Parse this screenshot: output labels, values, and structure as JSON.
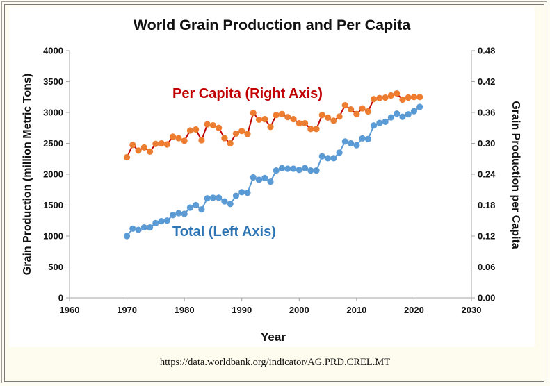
{
  "source_text": "https://data.worldbank.org/indicator/AG.PRD.CREL.MT",
  "chart_data": {
    "type": "line",
    "title": "World Grain Production and Per Capita",
    "xlabel": "Year",
    "ylabel_left": "Grain Production (million Metric Tons)",
    "ylabel_right": "Grain Production per Capita",
    "xlim": [
      1960,
      2030
    ],
    "ylim_left": [
      0,
      4000
    ],
    "ylim_right": [
      0,
      0.48
    ],
    "x_ticks": [
      "1960",
      "1970",
      "1980",
      "1990",
      "2000",
      "2010",
      "2020",
      "2030"
    ],
    "y_left_ticks": [
      "0",
      "500",
      "1000",
      "1500",
      "2000",
      "2500",
      "3000",
      "3500",
      "4000"
    ],
    "y_right_ticks": [
      "0.00",
      "0.06",
      "0.12",
      "0.18",
      "0.24",
      "0.30",
      "0.36",
      "0.42",
      "0.48"
    ],
    "grid": false,
    "series": [
      {
        "name": "Total (Left Axis)",
        "axis": "left",
        "color": "#5b9bd5",
        "label_color": "#2e75b6",
        "x": [
          1970,
          1971,
          1972,
          1973,
          1974,
          1975,
          1976,
          1977,
          1978,
          1979,
          1980,
          1981,
          1982,
          1983,
          1984,
          1985,
          1986,
          1987,
          1988,
          1989,
          1990,
          1991,
          1992,
          1993,
          1994,
          1995,
          1996,
          1997,
          1998,
          1999,
          2000,
          2001,
          2002,
          2003,
          2004,
          2005,
          2006,
          2007,
          2008,
          2009,
          2010,
          2011,
          2012,
          2013,
          2014,
          2015,
          2016,
          2017,
          2018,
          2019,
          2020,
          2021
        ],
        "y": [
          1000,
          1120,
          1100,
          1140,
          1140,
          1210,
          1240,
          1250,
          1340,
          1370,
          1360,
          1460,
          1500,
          1430,
          1610,
          1620,
          1620,
          1560,
          1520,
          1650,
          1710,
          1700,
          1950,
          1910,
          1940,
          1880,
          2060,
          2100,
          2090,
          2090,
          2070,
          2100,
          2060,
          2060,
          2290,
          2260,
          2260,
          2350,
          2530,
          2500,
          2470,
          2580,
          2570,
          2790,
          2830,
          2850,
          2920,
          2980,
          2930,
          2970,
          3020,
          3090
        ]
      },
      {
        "name": "Per Capita (Right Axis)",
        "axis": "right",
        "color": "#ed7d31",
        "label_color": "#c00000",
        "x": [
          1970,
          1971,
          1972,
          1973,
          1974,
          1975,
          1976,
          1977,
          1978,
          1979,
          1980,
          1981,
          1982,
          1983,
          1984,
          1985,
          1986,
          1987,
          1988,
          1989,
          1990,
          1991,
          1992,
          1993,
          1994,
          1995,
          1996,
          1997,
          1998,
          1999,
          2000,
          2001,
          2002,
          2003,
          2004,
          2005,
          2006,
          2007,
          2008,
          2009,
          2010,
          2011,
          2012,
          2013,
          2014,
          2015,
          2016,
          2017,
          2018,
          2019,
          2020,
          2021
        ],
        "y": [
          0.273,
          0.297,
          0.286,
          0.292,
          0.284,
          0.299,
          0.3,
          0.298,
          0.313,
          0.31,
          0.305,
          0.325,
          0.327,
          0.306,
          0.337,
          0.335,
          0.33,
          0.31,
          0.3,
          0.319,
          0.324,
          0.318,
          0.359,
          0.346,
          0.347,
          0.332,
          0.355,
          0.357,
          0.351,
          0.347,
          0.339,
          0.339,
          0.328,
          0.328,
          0.355,
          0.35,
          0.344,
          0.352,
          0.374,
          0.366,
          0.357,
          0.368,
          0.362,
          0.386,
          0.388,
          0.389,
          0.393,
          0.397,
          0.385,
          0.389,
          0.39,
          0.39
        ]
      }
    ]
  }
}
